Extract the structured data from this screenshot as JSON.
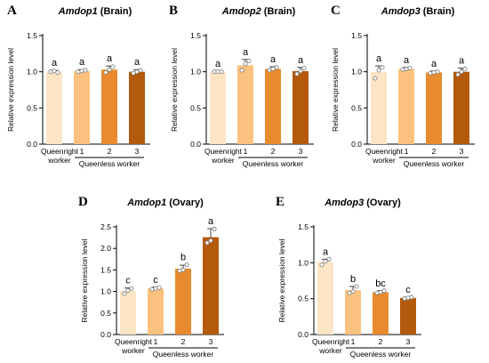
{
  "chart_data": [
    {
      "type": "bar",
      "panel_label": "A",
      "title_gene": "Amdop1",
      "title_tissue": " (Brain)",
      "ylabel": "Relative expression level",
      "yticks": [
        "0.0",
        "0.5",
        "1.0",
        "1.5"
      ],
      "ylim": [
        0,
        1.5
      ],
      "categories": [
        "Queenright\nworker",
        "1",
        "2",
        "3"
      ],
      "group_label": "Queenless worker",
      "values": [
        1.0,
        1.01,
        1.03,
        1.0
      ],
      "errors": [
        0.02,
        0.02,
        0.05,
        0.03
      ],
      "points": [
        [
          1.0,
          1.01,
          0.99
        ],
        [
          1.0,
          1.01,
          1.02
        ],
        [
          0.99,
          1.03,
          1.07
        ],
        [
          0.98,
          1.0,
          1.02
        ]
      ],
      "significance": [
        "a",
        "a",
        "a",
        "a"
      ],
      "colors": [
        "#fce5c5",
        "#fbc27f",
        "#e88b2f",
        "#b35a0c"
      ]
    },
    {
      "type": "bar",
      "panel_label": "B",
      "title_gene": "Amdop2",
      "title_tissue": " (Brain)",
      "ylabel": "Relative expression level",
      "yticks": [
        "0.0",
        "0.5",
        "1.0",
        "1.5"
      ],
      "ylim": [
        0,
        1.5
      ],
      "categories": [
        "Queenright\nworker",
        "1",
        "2",
        "3"
      ],
      "group_label": "Queenless worker",
      "values": [
        1.0,
        1.09,
        1.04,
        1.01
      ],
      "errors": [
        0.01,
        0.08,
        0.03,
        0.05
      ],
      "points": [
        [
          1.0,
          1.0,
          1.0
        ],
        [
          1.02,
          1.11,
          1.15
        ],
        [
          1.02,
          1.04,
          1.06
        ],
        [
          0.97,
          1.01,
          1.05
        ]
      ],
      "significance": [
        "a",
        "a",
        "a",
        "a"
      ],
      "colors": [
        "#fce5c5",
        "#fbc27f",
        "#e88b2f",
        "#b35a0c"
      ]
    },
    {
      "type": "bar",
      "panel_label": "C",
      "title_gene": "Amdop3",
      "title_tissue": " (Brain)",
      "ylabel": "Relative expression level",
      "yticks": [
        "0.0",
        "0.5",
        "1.0",
        "1.5"
      ],
      "ylim": [
        0,
        1.5
      ],
      "categories": [
        "Queenright\nworker",
        "1",
        "2",
        "3"
      ],
      "group_label": "Queenless worker",
      "values": [
        1.0,
        1.04,
        0.99,
        1.0
      ],
      "errors": [
        0.08,
        0.02,
        0.02,
        0.05
      ],
      "points": [
        [
          0.91,
          1.02,
          1.06
        ],
        [
          1.03,
          1.04,
          1.05
        ],
        [
          0.98,
          0.99,
          1.0
        ],
        [
          0.96,
          1.0,
          1.04
        ]
      ],
      "significance": [
        "a",
        "a",
        "a",
        "a"
      ],
      "colors": [
        "#fce5c5",
        "#fbc27f",
        "#e88b2f",
        "#b35a0c"
      ]
    },
    {
      "type": "bar",
      "panel_label": "D",
      "title_gene": "Amdop1",
      "title_tissue": " (Ovary)",
      "ylabel": "Relative expression level",
      "yticks": [
        "0.0",
        "0.5",
        "1.0",
        "1.5",
        "2.0",
        "2.5"
      ],
      "ylim": [
        0,
        2.5
      ],
      "categories": [
        "Queenright\nworker",
        "1",
        "2",
        "3"
      ],
      "group_label": "Queenless worker",
      "values": [
        1.01,
        1.07,
        1.53,
        2.26
      ],
      "errors": [
        0.07,
        0.03,
        0.08,
        0.2
      ],
      "points": [
        [
          0.95,
          1.02,
          1.07
        ],
        [
          1.05,
          1.07,
          1.09
        ],
        [
          1.48,
          1.5,
          1.62
        ],
        [
          2.13,
          2.18,
          2.45
        ]
      ],
      "significance": [
        "c",
        "c",
        "b",
        "a"
      ],
      "colors": [
        "#fce5c5",
        "#fbc27f",
        "#e88b2f",
        "#b35a0c"
      ]
    },
    {
      "type": "bar",
      "panel_label": "E",
      "title_gene": "Amdop3",
      "title_tissue": " (Ovary)",
      "ylabel": "Relative expression level",
      "yticks": [
        "0.0",
        "0.5",
        "1.0",
        "1.5"
      ],
      "ylim": [
        0,
        1.5
      ],
      "categories": [
        "Queenright\nworker",
        "1",
        "2",
        "3"
      ],
      "group_label": "Queenless worker",
      "values": [
        1.01,
        0.62,
        0.59,
        0.51
      ],
      "errors": [
        0.04,
        0.05,
        0.02,
        0.01
      ],
      "points": [
        [
          0.97,
          1.02,
          1.05
        ],
        [
          0.58,
          0.6,
          0.67
        ],
        [
          0.58,
          0.59,
          0.61
        ],
        [
          0.5,
          0.51,
          0.52
        ]
      ],
      "significance": [
        "a",
        "b",
        "bc",
        "c"
      ],
      "colors": [
        "#fce5c5",
        "#fbc27f",
        "#e88b2f",
        "#b35a0c"
      ]
    }
  ]
}
